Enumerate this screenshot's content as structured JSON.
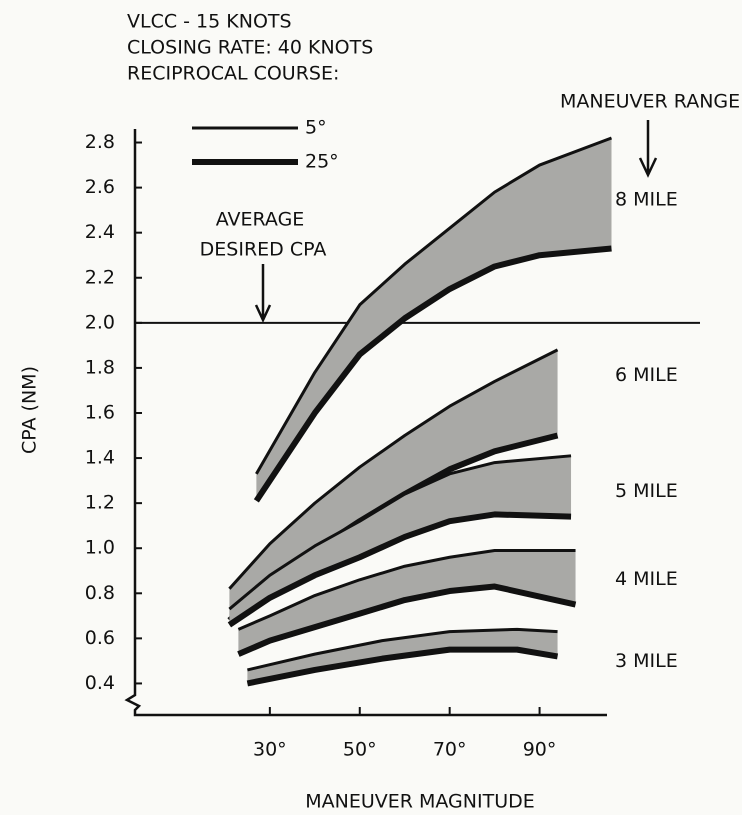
{
  "chart_data": {
    "type": "band",
    "annotations": [
      "VLCC - 15 KNOTS",
      "CLOSING RATE:  40 KNOTS",
      "RECIPROCAL COURSE:"
    ],
    "range_title": "MANEUVER RANGE",
    "reference": {
      "value": 2,
      "label": [
        "AVERAGE",
        "DESIRED CPA"
      ]
    },
    "xlabel": "MANEUVER MAGNITUDE",
    "ylabel": "CPA (NM)",
    "legend": [
      {
        "label": "5°",
        "width": 3
      },
      {
        "label": "25°",
        "width": 6
      }
    ],
    "xlim": [
      0,
      105
    ],
    "ylim": [
      0.26,
      2.86
    ],
    "xticks": [
      {
        "value": 30,
        "label": "30°"
      },
      {
        "value": 50,
        "label": "50°"
      },
      {
        "value": 70,
        "label": "70°"
      },
      {
        "value": 90,
        "label": "90°"
      }
    ],
    "yticks": [
      0.4,
      0.6,
      0.8,
      {
        "value": 1,
        "label": "1.0"
      },
      1.2,
      1.4,
      1.6,
      1.8,
      {
        "value": 2,
        "label": "2.0"
      },
      2.2,
      2.4,
      2.6,
      2.8
    ],
    "color": "#a9a9a6",
    "series": [
      {
        "name": "8 MILE",
        "x": [
          27,
          40,
          50,
          60,
          70,
          80,
          90,
          106
        ],
        "upper": [
          1.33,
          1.78,
          2.08,
          2.26,
          2.42,
          2.58,
          2.7,
          2.82
        ],
        "lower": [
          1.21,
          1.6,
          1.86,
          2.02,
          2.15,
          2.25,
          2.3,
          2.33
        ]
      },
      {
        "name": "6 MILE",
        "x": [
          21,
          30,
          40,
          50,
          60,
          70,
          80,
          94
        ],
        "upper": [
          0.82,
          1.02,
          1.2,
          1.36,
          1.5,
          1.63,
          1.74,
          1.88
        ],
        "lower": [
          0.68,
          0.84,
          0.99,
          1.12,
          1.24,
          1.35,
          1.43,
          1.5
        ]
      },
      {
        "name": "5 MILE",
        "x": [
          21,
          30,
          40,
          50,
          60,
          70,
          80,
          97
        ],
        "upper": [
          0.73,
          0.88,
          1.01,
          1.12,
          1.24,
          1.33,
          1.38,
          1.41
        ],
        "lower": [
          0.66,
          0.78,
          0.88,
          0.96,
          1.05,
          1.12,
          1.15,
          1.14
        ]
      },
      {
        "name": "4 MILE",
        "x": [
          23,
          30,
          40,
          50,
          60,
          70,
          80,
          98
        ],
        "upper": [
          0.64,
          0.7,
          0.79,
          0.86,
          0.92,
          0.96,
          0.99,
          0.99
        ],
        "lower": [
          0.53,
          0.59,
          0.65,
          0.71,
          0.77,
          0.81,
          0.83,
          0.75
        ]
      },
      {
        "name": "3 MILE",
        "x": [
          25,
          40,
          55,
          70,
          85,
          94
        ],
        "upper": [
          0.46,
          0.53,
          0.59,
          0.63,
          0.64,
          0.63
        ],
        "lower": [
          0.4,
          0.46,
          0.51,
          0.55,
          0.55,
          0.52
        ]
      }
    ]
  }
}
